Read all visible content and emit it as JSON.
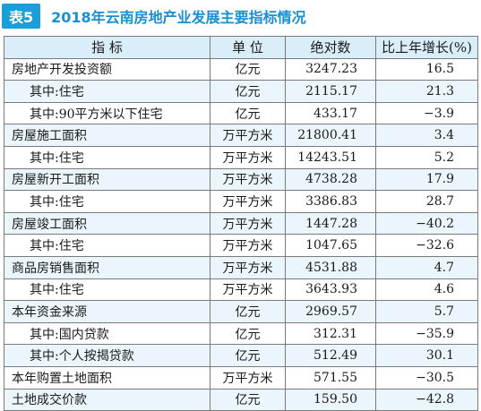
{
  "header": {
    "badge": "表5",
    "title": "2018年云南房地产业发展主要指标情况"
  },
  "columns": [
    "指  标",
    "单  位",
    "绝对数",
    "比上年增长(%)"
  ],
  "rows": [
    {
      "name": "房地产开发投资额",
      "unit": "亿元",
      "abs": "3247.23",
      "growth": "16.5",
      "sub": false
    },
    {
      "name": "其中:住宅",
      "unit": "亿元",
      "abs": "2115.17",
      "growth": "21.3",
      "sub": true
    },
    {
      "name": "其中:90平方米以下住宅",
      "unit": "亿元",
      "abs": "433.17",
      "growth": "−3.9",
      "sub": true
    },
    {
      "name": "房屋施工面积",
      "unit": "万平方米",
      "abs": "21800.41",
      "growth": "3.4",
      "sub": false
    },
    {
      "name": "其中:住宅",
      "unit": "万平方米",
      "abs": "14243.51",
      "growth": "5.2",
      "sub": true
    },
    {
      "name": "房屋新开工面积",
      "unit": "万平方米",
      "abs": "4738.28",
      "growth": "17.9",
      "sub": false
    },
    {
      "name": "其中:住宅",
      "unit": "万平方米",
      "abs": "3386.83",
      "growth": "28.7",
      "sub": true
    },
    {
      "name": "房屋竣工面积",
      "unit": "万平方米",
      "abs": "1447.28",
      "growth": "−40.2",
      "sub": false
    },
    {
      "name": "其中:住宅",
      "unit": "万平方米",
      "abs": "1047.65",
      "growth": "−32.6",
      "sub": true
    },
    {
      "name": "商品房销售面积",
      "unit": "万平方米",
      "abs": "4531.88",
      "growth": "4.7",
      "sub": false
    },
    {
      "name": "其中:住宅",
      "unit": "万平方米",
      "abs": "3643.93",
      "growth": "4.6",
      "sub": true
    },
    {
      "name": "本年资金来源",
      "unit": "亿元",
      "abs": "2969.57",
      "growth": "5.7",
      "sub": false
    },
    {
      "name": "其中:国内贷款",
      "unit": "亿元",
      "abs": "312.31",
      "growth": "−35.9",
      "sub": true
    },
    {
      "name": "其中:个人按揭贷款",
      "unit": "亿元",
      "abs": "512.49",
      "growth": "30.1",
      "sub": true
    },
    {
      "name": "本年购置土地面积",
      "unit": "万平方米",
      "abs": "571.55",
      "growth": "−30.5",
      "sub": false
    },
    {
      "name": "土地成交价款",
      "unit": "亿元",
      "abs": "159.50",
      "growth": "−42.8",
      "sub": false
    }
  ],
  "colors": {
    "badge_bg": "#1a9fd9",
    "title": "#1a8fd1",
    "header_bg": "#d9eef9",
    "stripe": "#eaf5fc"
  }
}
